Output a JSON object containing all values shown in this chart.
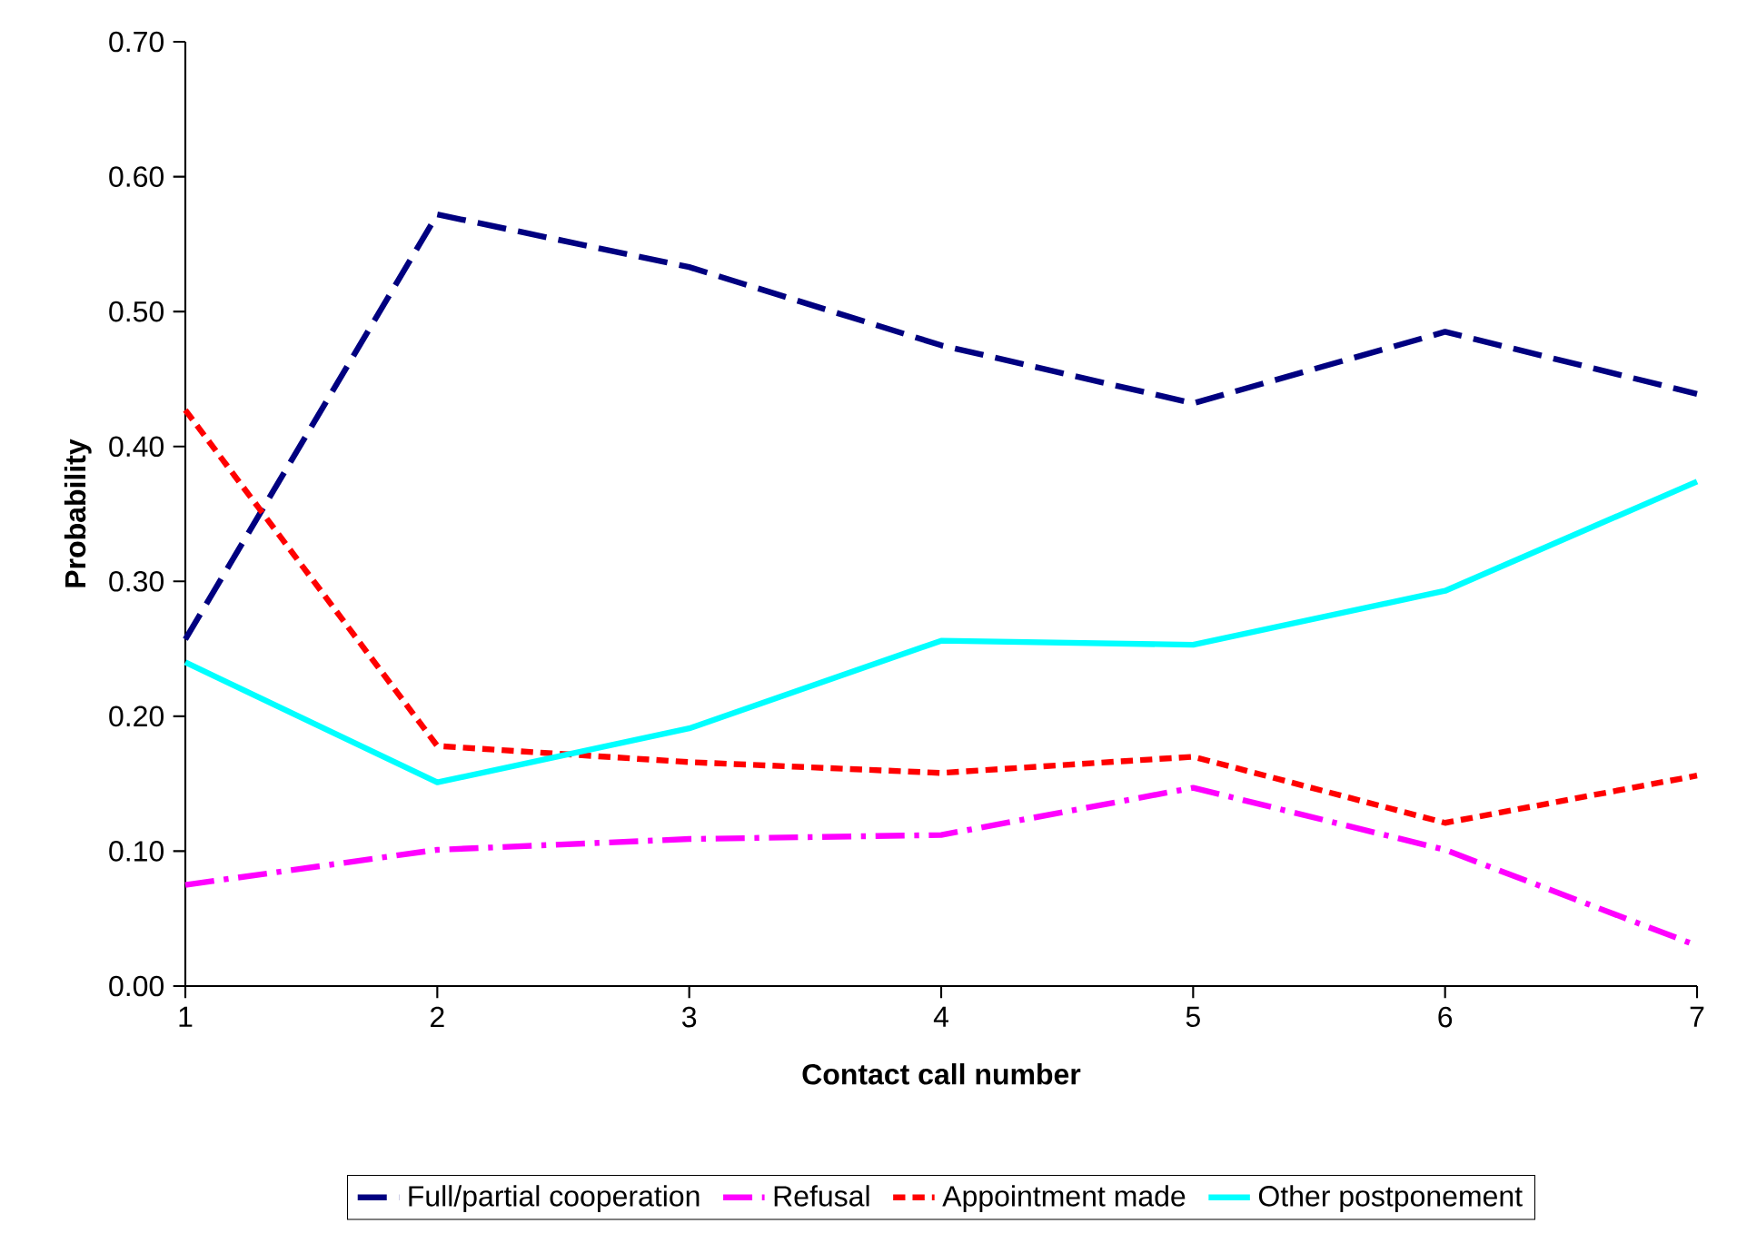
{
  "chart_data": {
    "type": "line",
    "xlabel": "Contact call number",
    "ylabel": "Probability",
    "x": [
      1,
      2,
      3,
      4,
      5,
      6,
      7
    ],
    "xlim": [
      1,
      7
    ],
    "xticks": [
      1,
      2,
      3,
      4,
      5,
      6,
      7
    ],
    "ylim": [
      0,
      0.7
    ],
    "yticks": [
      {
        "value": 0,
        "label": "0.00"
      },
      {
        "value": 0.1,
        "label": "0.10"
      },
      {
        "value": 0.2,
        "label": "0.20"
      },
      {
        "value": 0.3,
        "label": "0.30"
      },
      {
        "value": 0.4,
        "label": "0.40"
      },
      {
        "value": 0.5,
        "label": "0.50"
      },
      {
        "value": 0.6,
        "label": "0.60"
      },
      {
        "value": 0.7,
        "label": "0.70"
      }
    ],
    "grid": false,
    "legend": "bottom",
    "marker": "none",
    "series": [
      {
        "name": "Full/partial cooperation",
        "color": "#000080",
        "line_style": "dashed",
        "values": [
          0.257,
          0.572,
          0.533,
          0.475,
          0.432,
          0.485,
          0.439
        ]
      },
      {
        "name": "Refusal",
        "color": "#ff00ff",
        "line_style": "dashdot",
        "values": [
          0.075,
          0.101,
          0.109,
          0.112,
          0.147,
          0.101,
          0.03
        ]
      },
      {
        "name": "Appointment made",
        "color": "#ff0000",
        "line_style": "dotted",
        "values": [
          0.427,
          0.178,
          0.166,
          0.158,
          0.17,
          0.121,
          0.156
        ]
      },
      {
        "name": "Other postponement",
        "color": "#00ffff",
        "line_style": "solid",
        "values": [
          0.24,
          0.151,
          0.191,
          0.256,
          0.253,
          0.293,
          0.374
        ]
      }
    ]
  }
}
